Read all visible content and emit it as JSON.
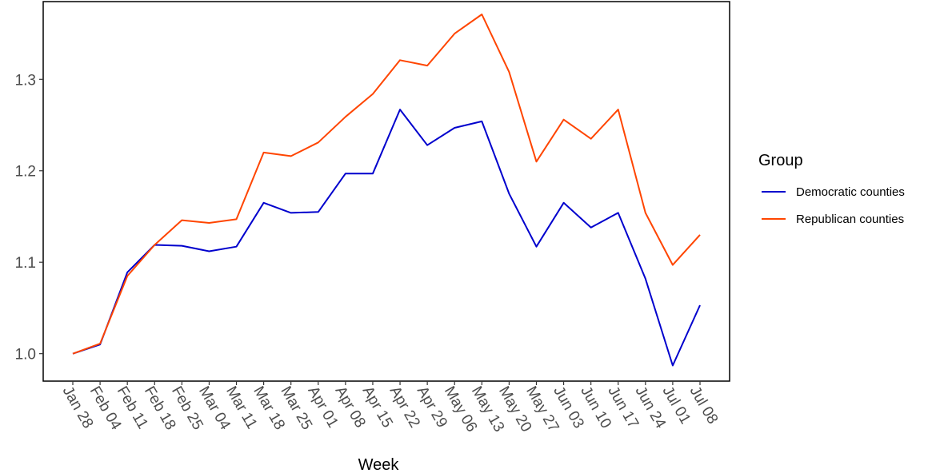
{
  "chart_data": {
    "type": "line",
    "title": "",
    "xlabel": "Week",
    "ylabel": "",
    "categories": [
      "Jan 28",
      "Feb 04",
      "Feb 11",
      "Feb 18",
      "Feb 25",
      "Mar 04",
      "Mar 11",
      "Mar 18",
      "Mar 25",
      "Apr 01",
      "Apr 08",
      "Apr 15",
      "Apr 22",
      "Apr 29",
      "May 06",
      "May 13",
      "May 20",
      "May 27",
      "Jun 03",
      "Jun 10",
      "Jun 17",
      "Jun 24",
      "Jul 01",
      "Jul 08"
    ],
    "y_ticks": [
      1.0,
      1.1,
      1.2,
      1.3
    ],
    "y_tick_labels": [
      "1.0",
      "1.1",
      "1.2",
      "1.3"
    ],
    "ylim": [
      0.97,
      1.385
    ],
    "grid": false,
    "legend": {
      "title": "Group",
      "position": "right"
    },
    "series": [
      {
        "name": "Democratic counties",
        "color": "#0000cd",
        "values": [
          1.0,
          1.01,
          1.089,
          1.119,
          1.118,
          1.112,
          1.117,
          1.165,
          1.154,
          1.155,
          1.197,
          1.197,
          1.267,
          1.228,
          1.247,
          1.254,
          1.175,
          1.117,
          1.165,
          1.138,
          1.154,
          1.082,
          0.987,
          1.053
        ]
      },
      {
        "name": "Republican counties",
        "color": "#ff4500",
        "values": [
          1.0,
          1.011,
          1.085,
          1.119,
          1.146,
          1.143,
          1.147,
          1.22,
          1.216,
          1.231,
          1.259,
          1.284,
          1.321,
          1.315,
          1.35,
          1.371,
          1.308,
          1.21,
          1.256,
          1.235,
          1.267,
          1.154,
          1.097,
          1.13
        ]
      }
    ]
  }
}
